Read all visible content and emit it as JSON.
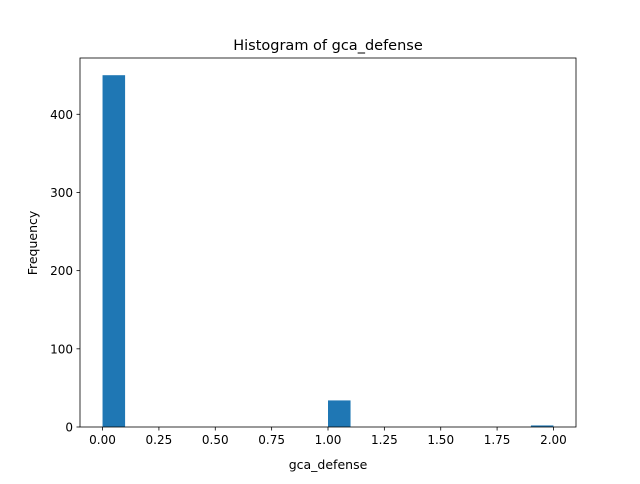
{
  "chart_data": {
    "type": "bar",
    "title": "Histogram of gca_defense",
    "xlabel": "gca_defense",
    "ylabel": "Frequency",
    "xlim": [
      -0.1,
      2.1
    ],
    "ylim": [
      0,
      472
    ],
    "x_ticks": [
      0.0,
      0.25,
      0.5,
      0.75,
      1.0,
      1.25,
      1.5,
      1.75,
      2.0
    ],
    "x_tick_labels": [
      "0.00",
      "0.25",
      "0.50",
      "0.75",
      "1.00",
      "1.25",
      "1.50",
      "1.75",
      "2.00"
    ],
    "y_ticks": [
      0,
      100,
      200,
      300,
      400
    ],
    "y_tick_labels": [
      "0",
      "100",
      "200",
      "300",
      "400"
    ],
    "bins": [
      {
        "start": 0.0,
        "end": 0.1,
        "value": 450
      },
      {
        "start": 0.1,
        "end": 0.2,
        "value": 0
      },
      {
        "start": 0.2,
        "end": 0.3,
        "value": 0
      },
      {
        "start": 0.3,
        "end": 0.4,
        "value": 0
      },
      {
        "start": 0.4,
        "end": 0.5,
        "value": 0
      },
      {
        "start": 0.5,
        "end": 0.6,
        "value": 0
      },
      {
        "start": 0.6,
        "end": 0.7,
        "value": 0
      },
      {
        "start": 0.7,
        "end": 0.8,
        "value": 0
      },
      {
        "start": 0.8,
        "end": 0.9,
        "value": 0
      },
      {
        "start": 0.9,
        "end": 1.0,
        "value": 0
      },
      {
        "start": 1.0,
        "end": 1.1,
        "value": 34
      },
      {
        "start": 1.1,
        "end": 1.2,
        "value": 0
      },
      {
        "start": 1.2,
        "end": 1.3,
        "value": 0
      },
      {
        "start": 1.3,
        "end": 1.4,
        "value": 0
      },
      {
        "start": 1.4,
        "end": 1.5,
        "value": 0
      },
      {
        "start": 1.5,
        "end": 1.6,
        "value": 0
      },
      {
        "start": 1.6,
        "end": 1.7,
        "value": 0
      },
      {
        "start": 1.7,
        "end": 1.8,
        "value": 0
      },
      {
        "start": 1.8,
        "end": 1.9,
        "value": 0
      },
      {
        "start": 1.9,
        "end": 2.0,
        "value": 2
      }
    ],
    "bar_color": "#1f77b4",
    "grid": false,
    "legend": "none"
  }
}
